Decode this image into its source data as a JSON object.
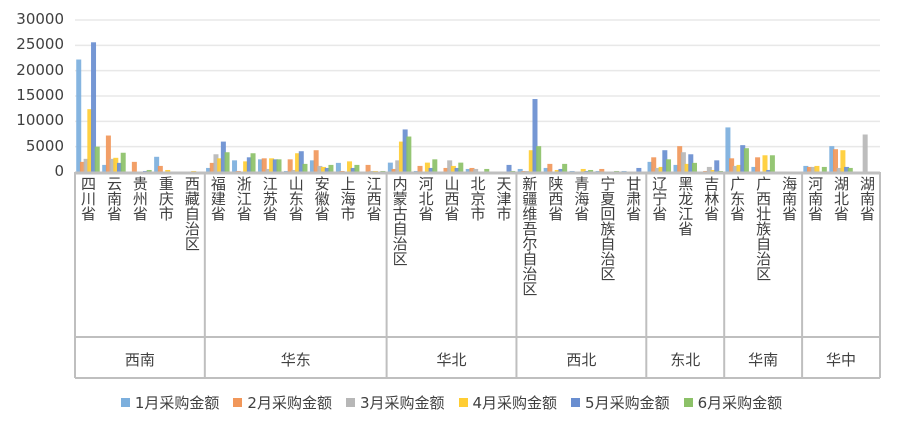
{
  "chart_data": {
    "type": "bar",
    "ylim": [
      0,
      30000
    ],
    "yticks": [
      "0",
      "5000",
      "10000",
      "15000",
      "20000",
      "25000",
      "30000"
    ],
    "grid": true,
    "legend_position": "bottom",
    "groups": [
      {
        "name": "西南",
        "categories": [
          "四川省",
          "云南省",
          "贵州省",
          "重庆市",
          "西藏自治区"
        ]
      },
      {
        "name": "华东",
        "categories": [
          "福建省",
          "浙江省",
          "江苏省",
          "山东省",
          "安徽省",
          "上海市",
          "江西省"
        ]
      },
      {
        "name": "华北",
        "categories": [
          "内蒙古自治区",
          "河北省",
          "山西省",
          "北京市",
          "天津市"
        ]
      },
      {
        "name": "西北",
        "categories": [
          "新疆维吾尔自治区",
          "陕西省",
          "青海省",
          "宁夏回族自治区",
          "甘肃省"
        ]
      },
      {
        "name": "东北",
        "categories": [
          "辽宁省",
          "黑龙江省",
          "吉林省"
        ]
      },
      {
        "name": "华南",
        "categories": [
          "广东省",
          "广西壮族自治区",
          "海南省"
        ]
      },
      {
        "name": "华中",
        "categories": [
          "河南省",
          "湖北省",
          "湖南省"
        ]
      }
    ],
    "series": [
      {
        "name": "1月采购金额",
        "color": "#7cafdd",
        "values": [
          22200,
          1400,
          0,
          3000,
          0,
          800,
          2300,
          2500,
          200,
          2300,
          1800,
          0,
          1850,
          200,
          0,
          600,
          0,
          600,
          800,
          200,
          200,
          200,
          2000,
          1400,
          0,
          8800,
          1000,
          0,
          1200,
          5100,
          0
        ]
      },
      {
        "name": "2月采购金额",
        "color": "#f1975a",
        "values": [
          2000,
          7200,
          2000,
          1200,
          0,
          1800,
          200,
          2700,
          2500,
          4300,
          200,
          1400,
          600,
          1200,
          800,
          800,
          0,
          200,
          1600,
          0,
          600,
          0,
          2900,
          5100,
          200,
          2700,
          2900,
          0,
          1000,
          4500,
          0
        ]
      },
      {
        "name": "3月采购金额",
        "color": "#b7b7b7",
        "values": [
          2600,
          2600,
          0,
          0,
          0,
          3500,
          0,
          600,
          400,
          1200,
          0,
          200,
          2300,
          0,
          2300,
          600,
          0,
          200,
          0,
          0,
          0,
          0,
          800,
          3900,
          1000,
          1200,
          0,
          0,
          1000,
          800,
          7400
        ]
      },
      {
        "name": "4月采购金额",
        "color": "#ffcd33",
        "values": [
          12400,
          2800,
          0,
          400,
          200,
          2700,
          2100,
          2700,
          3700,
          1000,
          2100,
          200,
          6000,
          1850,
          1200,
          0,
          0,
          4300,
          400,
          600,
          0,
          0,
          1000,
          1600,
          400,
          1400,
          3300,
          0,
          1200,
          4300,
          0
        ]
      },
      {
        "name": "5月采购金额",
        "color": "#698ed0",
        "values": [
          25600,
          1800,
          200,
          0,
          0,
          6000,
          2900,
          2500,
          4100,
          800,
          800,
          0,
          8400,
          800,
          800,
          0,
          1400,
          14400,
          600,
          200,
          0,
          800,
          4300,
          3500,
          2300,
          5300,
          400,
          0,
          0,
          1000,
          0
        ]
      },
      {
        "name": "6月采购金额",
        "color": "#8cc168",
        "values": [
          5000,
          3800,
          400,
          0,
          0,
          3900,
          3700,
          2500,
          1600,
          1400,
          1400,
          200,
          7000,
          2500,
          1850,
          600,
          200,
          5100,
          1600,
          400,
          200,
          0,
          2500,
          1800,
          200,
          4700,
          3300,
          0,
          1000,
          800,
          0
        ]
      }
    ]
  }
}
